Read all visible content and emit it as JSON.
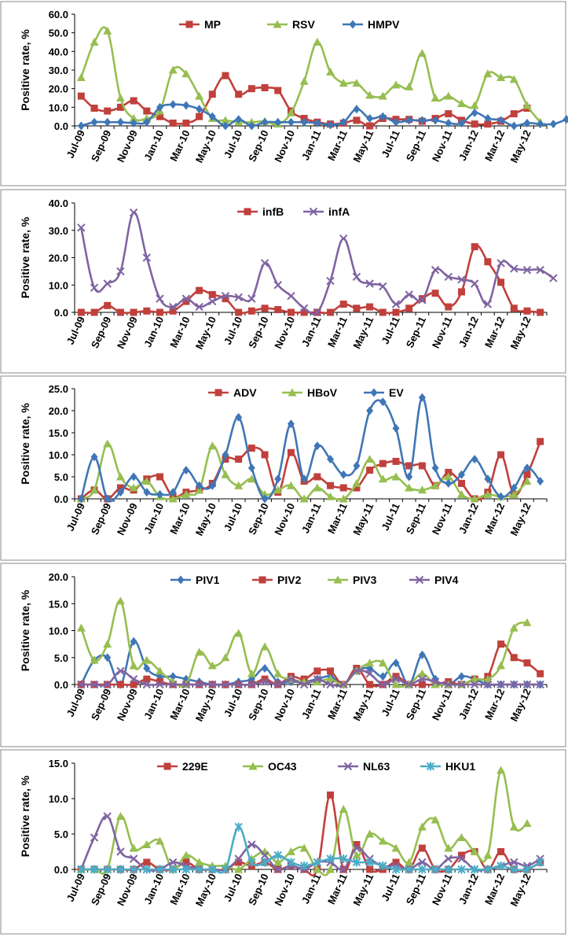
{
  "colors": {
    "MP": "#c0403c",
    "RSV": "#96be50",
    "HMPV": "#3f76b6",
    "infB": "#c0403c",
    "infA": "#8064a2",
    "ADV": "#c0403c",
    "HBoV": "#96be50",
    "EV": "#3f76b6",
    "PIV1": "#3f76b6",
    "PIV2": "#c0403c",
    "PIV3": "#96be50",
    "PIV4": "#8064a2",
    "229E": "#c0403c",
    "OC43": "#96be50",
    "NL63": "#8064a2",
    "HKU1": "#4bacc6"
  },
  "chart_data": [
    {
      "type": "line",
      "ylabel": "Positive rate, %",
      "ylim": [
        0,
        60
      ],
      "yticks": [
        "0.0",
        "10.0",
        "20.0",
        "30.0",
        "40.0",
        "50.0",
        "60.0"
      ],
      "xtick_labels": [
        "Jul-09",
        "Sep-09",
        "Nov-09",
        "Jan-10",
        "Mar-10",
        "May-10",
        "Jul-10",
        "Sep-10",
        "Nov-10",
        "Jan-11",
        "Mar-11",
        "May-11",
        "Jul-11",
        "Sep-11",
        "Nov-11",
        "Jan-12",
        "Mar-12",
        "May-12"
      ],
      "series": [
        {
          "name": "MP",
          "marker": "square",
          "values": [
            16,
            9.5,
            8,
            10,
            13.5,
            8,
            5,
            1.5,
            1.5,
            5,
            17,
            27,
            17,
            20,
            20.5,
            19,
            8,
            4,
            2,
            1,
            1.5,
            3,
            0,
            4,
            3.5,
            3.5,
            2.5,
            4,
            6.5,
            3,
            1,
            1,
            2.5,
            6.5,
            9.5
          ]
        },
        {
          "name": "RSV",
          "marker": "triangle",
          "values": [
            26,
            45,
            51,
            15,
            4,
            4,
            8,
            30,
            28,
            16,
            4,
            3,
            2,
            2,
            2.5,
            1,
            7,
            24,
            45,
            29,
            23,
            23,
            16.5,
            16,
            22,
            21,
            39,
            15,
            16,
            12,
            11,
            28,
            26,
            25,
            11,
            2
          ]
        },
        {
          "name": "HMPV",
          "marker": "diamond",
          "values": [
            0,
            2,
            2,
            2,
            1.5,
            2,
            10,
            11.5,
            11,
            9,
            5,
            0,
            3.5,
            0,
            2,
            2,
            2,
            2,
            1.5,
            0.5,
            2,
            9,
            4,
            5,
            2,
            3,
            3,
            3,
            1.5,
            1.5,
            7,
            4,
            3,
            0,
            1.5,
            1,
            1,
            3.5
          ]
        }
      ],
      "legend": [
        "MP",
        "RSV",
        "HMPV"
      ]
    },
    {
      "type": "line",
      "ylabel": "Positive rate, %",
      "ylim": [
        0,
        40
      ],
      "yticks": [
        "0.0",
        "10.0",
        "20.0",
        "30.0",
        "40.0"
      ],
      "xtick_labels": [
        "Jul-09",
        "Sep-09",
        "Nov-09",
        "Jan-10",
        "Mar-10",
        "May-10",
        "Jul-10",
        "Sep-10",
        "Nov-10",
        "Jan-11",
        "Mar-11",
        "May-11",
        "Jul-11",
        "Sep-11",
        "Nov-11",
        "Jan-12",
        "Mar-12",
        "May-12"
      ],
      "series": [
        {
          "name": "infB",
          "marker": "square",
          "values": [
            0,
            0,
            2.5,
            0,
            0,
            0.5,
            0,
            0.5,
            4,
            8,
            6.5,
            5,
            0,
            0.5,
            1.5,
            1,
            0,
            0,
            0,
            0,
            3,
            1.5,
            2,
            0,
            0,
            1.5,
            5,
            7,
            2,
            7.5,
            24,
            18.5,
            11,
            1.5,
            0.5,
            0
          ]
        },
        {
          "name": "infA",
          "marker": "x",
          "values": [
            31,
            9,
            10.5,
            15,
            36.5,
            20,
            5,
            2,
            5,
            2,
            4,
            6,
            5.5,
            5,
            18,
            10,
            6,
            1.5,
            0,
            11.5,
            27,
            13,
            10.5,
            9.5,
            3,
            6.5,
            4.5,
            15.5,
            13,
            12,
            10.5,
            3,
            18,
            16,
            15.5,
            15.5,
            12.5
          ]
        }
      ],
      "legend": [
        "infB",
        "infA"
      ]
    },
    {
      "type": "line",
      "ylabel": "Positive rate, %",
      "ylim": [
        0,
        25
      ],
      "yticks": [
        "0.0",
        "5.0",
        "10.0",
        "15.0",
        "20.0",
        "25.0"
      ],
      "xtick_labels": [
        "Jul-09",
        "Sep-09",
        "Nov-09",
        "Jan-10",
        "Mar-10",
        "May-10",
        "Jul-10",
        "Sep-10",
        "Nov-10",
        "Jan-11",
        "Mar-11",
        "May-11",
        "Jul-11",
        "Sep-11",
        "Nov-11",
        "Jan-12",
        "Mar-12",
        "May-12"
      ],
      "series": [
        {
          "name": "ADV",
          "marker": "square",
          "values": [
            0,
            2,
            0,
            2.5,
            2,
            4.5,
            5,
            0.5,
            1.5,
            2,
            3.5,
            9,
            9,
            11.5,
            10,
            1.5,
            10.5,
            4,
            5,
            3,
            2.5,
            2.5,
            6.5,
            8,
            8.5,
            7.5,
            7.5,
            3,
            6,
            3.5,
            0,
            1.5,
            10,
            1,
            5.5,
            13
          ]
        },
        {
          "name": "HBoV",
          "marker": "triangle",
          "values": [
            0,
            2,
            12.5,
            5,
            2.5,
            4,
            0.5,
            0,
            1,
            2,
            12,
            5.5,
            3,
            4.5,
            1,
            2,
            3,
            0,
            2.5,
            0.5,
            0,
            3.5,
            9,
            4.5,
            5,
            2.5,
            2,
            3,
            5,
            1,
            0,
            1,
            0.5,
            1,
            4
          ]
        },
        {
          "name": "EV",
          "marker": "diamond",
          "values": [
            0,
            9.5,
            0,
            1.5,
            5,
            1.5,
            1,
            1.5,
            6.5,
            3,
            3,
            10,
            18.5,
            7,
            0,
            4.5,
            17,
            4.5,
            12,
            9,
            5.5,
            7.5,
            20,
            22,
            16,
            5,
            23,
            7,
            3.5,
            5.5,
            9,
            4.5,
            0.5,
            2.5,
            7,
            4
          ]
        }
      ],
      "legend": [
        "ADV",
        "HBoV",
        "EV"
      ]
    },
    {
      "type": "line",
      "ylabel": "Positive rate, %",
      "ylim": [
        0,
        20
      ],
      "yticks": [
        "0.0",
        "5.0",
        "10.0",
        "15.0",
        "20.0"
      ],
      "xtick_labels": [
        "Jul-09",
        "Sep-09",
        "Nov-09",
        "Jan-10",
        "Mar-10",
        "May-10",
        "Jul-10",
        "Sep-10",
        "Nov-10",
        "Jan-11",
        "Mar-11",
        "May-11",
        "Jul-11",
        "Sep-11",
        "Nov-11",
        "Jan-12",
        "Mar-12",
        "May-12"
      ],
      "series": [
        {
          "name": "PIV1",
          "marker": "diamond",
          "values": [
            0,
            4.5,
            5,
            0,
            8,
            3,
            1.5,
            1.5,
            1,
            0.5,
            0,
            0,
            0.5,
            1,
            3,
            0.5,
            0.5,
            0.5,
            1,
            1.5,
            0,
            2.5,
            3,
            1.5,
            4,
            0,
            5.5,
            1,
            0,
            1.5,
            1,
            0,
            0,
            0,
            0,
            0
          ]
        },
        {
          "name": "PIV2",
          "marker": "square",
          "values": [
            0,
            0,
            0,
            0,
            0,
            1,
            0.5,
            0,
            0,
            0,
            0,
            0,
            0,
            0,
            1,
            0,
            1.5,
            1,
            2.5,
            2.5,
            0,
            3,
            0,
            0,
            1.5,
            0,
            0,
            0,
            0.5,
            0,
            1,
            1.5,
            7.5,
            5,
            4,
            2
          ]
        },
        {
          "name": "PIV3",
          "marker": "triangle",
          "values": [
            10.5,
            4.5,
            7.5,
            15.5,
            3.5,
            4.5,
            2.5,
            0.5,
            0,
            6,
            3.5,
            5,
            9.5,
            2,
            7,
            2,
            1,
            0.5,
            0.5,
            1,
            0,
            2.5,
            4,
            4,
            0,
            0,
            2,
            0,
            0,
            0,
            1,
            1,
            3.5,
            10.5,
            11.5
          ]
        },
        {
          "name": "PIV4",
          "marker": "x",
          "values": [
            0,
            0,
            0,
            2.5,
            1,
            0,
            0,
            0,
            0,
            0,
            0,
            0,
            0,
            0,
            0.5,
            0,
            1,
            0,
            1,
            0,
            0,
            2.5,
            2,
            0,
            1,
            0,
            1,
            0.5,
            0,
            0,
            0,
            0,
            0,
            0,
            0,
            0
          ]
        }
      ],
      "legend": [
        "PIV1",
        "PIV2",
        "PIV3",
        "PIV4"
      ]
    },
    {
      "type": "line",
      "ylabel": "Positive rate, %",
      "ylim": [
        0,
        15
      ],
      "yticks": [
        "0.0",
        "5.0",
        "10.0",
        "15.0"
      ],
      "xtick_labels": [
        "Jul-09",
        "Sep-09",
        "Nov-09",
        "Jan-10",
        "Mar-10",
        "May-10",
        "Jul-10",
        "Sep-10",
        "Nov-10",
        "Jan-11",
        "Mar-11",
        "May-11",
        "Jul-11",
        "Sep-11",
        "Nov-11",
        "Jan-12",
        "Mar-12",
        "May-12"
      ],
      "series": [
        {
          "name": "229E",
          "marker": "square",
          "values": [
            0,
            0,
            0,
            0,
            0,
            1,
            0,
            0,
            1,
            0,
            0,
            0,
            1,
            0.5,
            1,
            0,
            0.5,
            0,
            0,
            10.5,
            0,
            3.5,
            0,
            0,
            1,
            0,
            3,
            0,
            0,
            2,
            2.5,
            0,
            2.5,
            0,
            0,
            1
          ]
        },
        {
          "name": "OC43",
          "marker": "triangle",
          "values": [
            0,
            0,
            0,
            7.5,
            3,
            3.5,
            4,
            0,
            2,
            1,
            0.5,
            0.5,
            0,
            1.5,
            2.5,
            1,
            2.5,
            3,
            0,
            0,
            8.5,
            2,
            5,
            4,
            3,
            1,
            6,
            7,
            3,
            4.5,
            2.5,
            2,
            14,
            6,
            6.5
          ]
        },
        {
          "name": "NL63",
          "marker": "x",
          "values": [
            0,
            4.5,
            7.5,
            2.5,
            1.5,
            0,
            0,
            1,
            0.5,
            0,
            0,
            0,
            1.5,
            3.5,
            2,
            0,
            0.5,
            0,
            1,
            1,
            0,
            3,
            1.5,
            0.5,
            0.5,
            0,
            1,
            0,
            1.5,
            1.5,
            0,
            0,
            0.5,
            1,
            0.5,
            1.5
          ]
        },
        {
          "name": "HKU1",
          "marker": "star",
          "values": [
            0,
            0,
            0,
            0,
            0,
            0,
            0,
            0,
            0,
            0,
            0,
            0,
            6,
            1,
            1,
            2,
            1,
            0.5,
            1,
            1.5,
            1.5,
            1,
            1,
            0.5,
            0,
            0,
            0,
            0,
            0,
            0,
            0,
            0,
            0.5,
            0,
            0,
            1
          ]
        }
      ],
      "legend": [
        "229E",
        "OC43",
        "NL63",
        "HKU1"
      ]
    }
  ]
}
